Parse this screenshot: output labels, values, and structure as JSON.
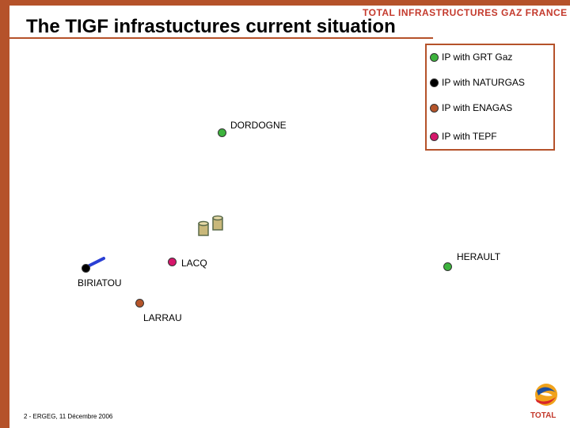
{
  "header": {
    "title": "The TIGF infrastuctures current situation",
    "brand": "TOTAL INFRASTRUCTURES GAZ FRANCE"
  },
  "legend": [
    {
      "label": "IP with GRT Gaz",
      "color": "#3db33d"
    },
    {
      "label": "IP with NATURGAS",
      "color": "#000000"
    },
    {
      "label": "IP with ENAGAS",
      "color": "#b5552a"
    },
    {
      "label": "IP with TEPF",
      "color": "#d6176b"
    }
  ],
  "points": [
    {
      "label": "DORDOGNE",
      "color": "#3db33d"
    },
    {
      "label": "HERAULT",
      "color": "#3db33d"
    },
    {
      "label": "LACQ",
      "color": "#d6176b"
    },
    {
      "label": "BIRIATOU",
      "color": "#000000"
    },
    {
      "label": "LARRAU",
      "color": "#b5552a"
    }
  ],
  "storage_icons": [
    "storage-tank-icon",
    "storage-tank-icon"
  ],
  "logo": {
    "text": "TOTAL"
  },
  "footer": {
    "text": "2 - ERGEG, 11 Décembre 2006"
  }
}
